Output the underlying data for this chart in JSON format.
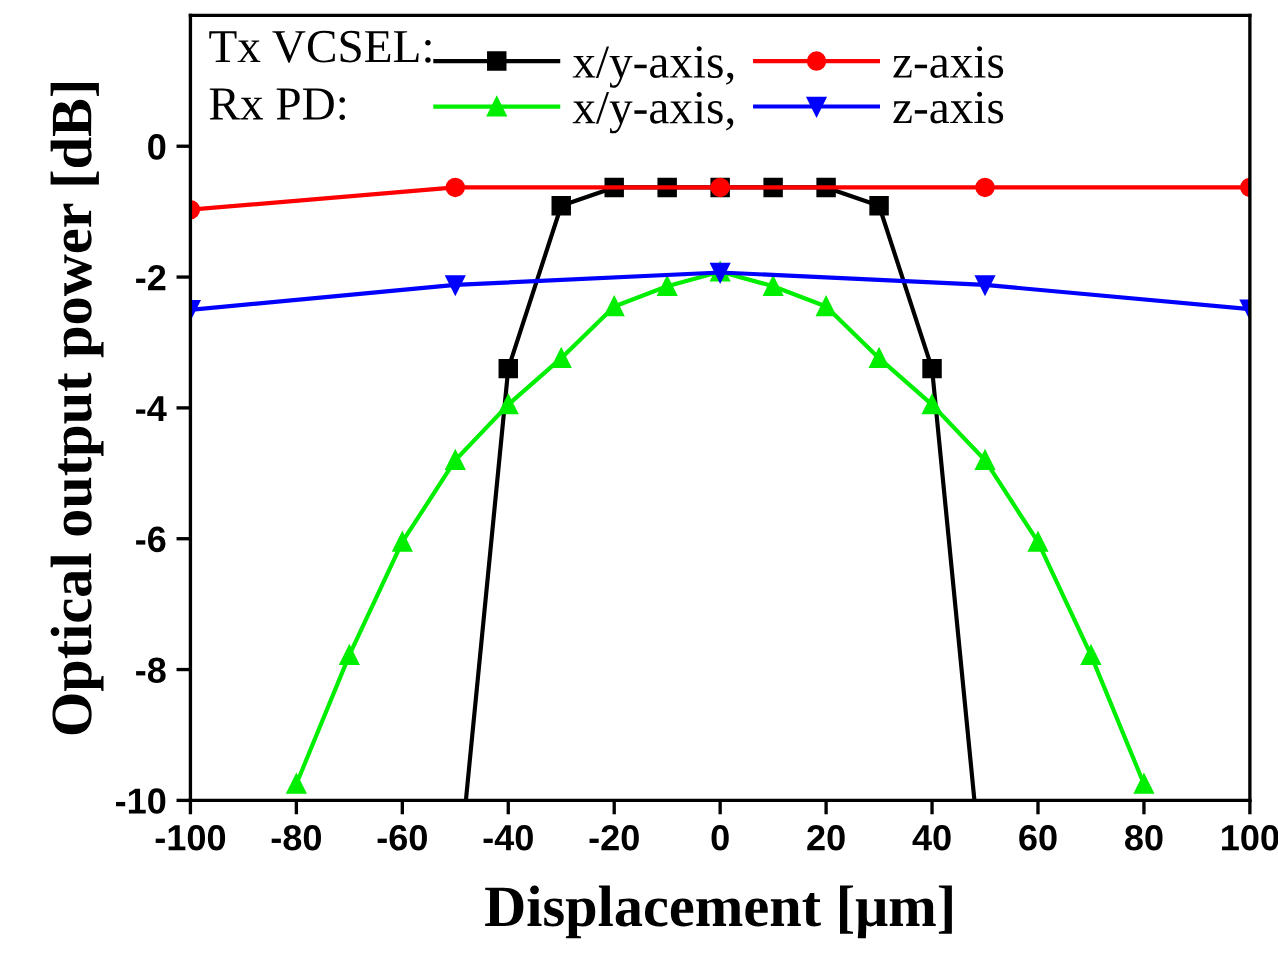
{
  "chart_data": {
    "type": "line",
    "xlabel": "Displacement [μm]",
    "ylabel": "Optical output power [dB]",
    "xlim": [
      -100,
      100
    ],
    "xticks": [
      -100,
      -80,
      -60,
      -40,
      -20,
      0,
      20,
      40,
      60,
      80,
      100
    ],
    "ylim": [
      -10,
      2
    ],
    "yticks": [
      -10,
      -8,
      -6,
      -4,
      -2,
      0
    ],
    "annotations": [
      "Tx VCSEL:",
      "Rx PD:"
    ],
    "legend": "top left",
    "grid": false,
    "series": [
      {
        "name": "x/y-axis,",
        "color": "#000000",
        "marker": "square",
        "x": [
          -48,
          -40,
          -30,
          -20,
          -10,
          0,
          10,
          20,
          30,
          40,
          48
        ],
        "values": [
          -10,
          -3.4,
          -0.91,
          -0.63,
          -0.63,
          -0.63,
          -0.63,
          -0.63,
          -0.91,
          -3.4,
          -10
        ]
      },
      {
        "name": "z-axis",
        "color": "#ff0000",
        "marker": "circle",
        "x": [
          -100,
          -50,
          0,
          50,
          100
        ],
        "values": [
          -0.97,
          -0.63,
          -0.63,
          -0.63,
          -0.63
        ]
      },
      {
        "name": "x/y-axis,",
        "color": "#00ee00",
        "marker": "triangle",
        "x": [
          -80,
          -70,
          -60,
          -50,
          -40,
          -30,
          -20,
          -10,
          0,
          10,
          20,
          30,
          40,
          50,
          60,
          70,
          80
        ],
        "values": [
          -9.75,
          -7.78,
          -6.05,
          -4.8,
          -3.95,
          -3.24,
          -2.45,
          -2.14,
          -1.92,
          -2.14,
          -2.45,
          -3.24,
          -3.95,
          -4.8,
          -6.05,
          -7.78,
          -9.75
        ]
      },
      {
        "name": "z-axis",
        "color": "#0000ff",
        "marker": "triangle_down",
        "x": [
          -100,
          -50,
          0,
          50,
          100
        ],
        "values": [
          -2.5,
          -2.12,
          -1.93,
          -2.12,
          -2.49
        ]
      }
    ]
  }
}
